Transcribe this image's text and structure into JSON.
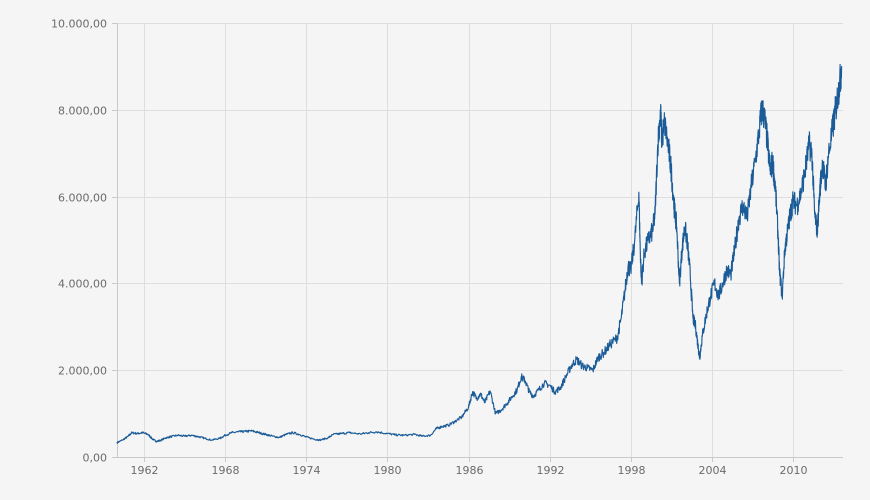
{
  "chart_data": {
    "type": "line",
    "title": "",
    "xlabel": "",
    "ylabel": "",
    "xlim": [
      1960,
      2013.7
    ],
    "ylim": [
      0,
      10000
    ],
    "grid": true,
    "legend": "none",
    "x_ticks": [
      1962,
      1968,
      1974,
      1980,
      1986,
      1992,
      1998,
      2004,
      2010
    ],
    "x_tick_labels": [
      "1962",
      "1968",
      "1974",
      "1980",
      "1986",
      "1992",
      "1998",
      "2004",
      "2010"
    ],
    "y_ticks": [
      0,
      2000,
      4000,
      6000,
      8000,
      10000
    ],
    "y_tick_labels": [
      "0,00",
      "2.000,00",
      "4.000,00",
      "6.000,00",
      "8.000,00",
      "10.000,00"
    ],
    "line_color": "#1a5b98",
    "series": [
      {
        "points": [
          [
            1960.0,
            330
          ],
          [
            1960.4,
            390
          ],
          [
            1960.8,
            470
          ],
          [
            1961.1,
            560
          ],
          [
            1961.5,
            540
          ],
          [
            1961.9,
            560
          ],
          [
            1962.3,
            520
          ],
          [
            1962.6,
            420
          ],
          [
            1962.9,
            360
          ],
          [
            1963.2,
            380
          ],
          [
            1963.6,
            440
          ],
          [
            1964.0,
            470
          ],
          [
            1964.5,
            500
          ],
          [
            1965.0,
            480
          ],
          [
            1965.5,
            500
          ],
          [
            1966.0,
            470
          ],
          [
            1966.5,
            430
          ],
          [
            1967.0,
            390
          ],
          [
            1967.6,
            430
          ],
          [
            1968.0,
            500
          ],
          [
            1968.5,
            560
          ],
          [
            1969.0,
            580
          ],
          [
            1969.5,
            590
          ],
          [
            1970.0,
            600
          ],
          [
            1970.5,
            560
          ],
          [
            1971.0,
            520
          ],
          [
            1971.5,
            480
          ],
          [
            1972.0,
            450
          ],
          [
            1972.5,
            520
          ],
          [
            1973.0,
            560
          ],
          [
            1973.5,
            520
          ],
          [
            1974.0,
            460
          ],
          [
            1974.6,
            410
          ],
          [
            1975.0,
            390
          ],
          [
            1975.6,
            440
          ],
          [
            1976.0,
            520
          ],
          [
            1976.6,
            540
          ],
          [
            1977.2,
            560
          ],
          [
            1978.0,
            530
          ],
          [
            1978.6,
            560
          ],
          [
            1979.2,
            580
          ],
          [
            1980.0,
            540
          ],
          [
            1980.6,
            510
          ],
          [
            1981.2,
            500
          ],
          [
            1982.0,
            520
          ],
          [
            1982.6,
            480
          ],
          [
            1983.2,
            500
          ],
          [
            1983.6,
            650
          ],
          [
            1984.0,
            700
          ],
          [
            1984.5,
            730
          ],
          [
            1985.0,
            820
          ],
          [
            1985.5,
            920
          ],
          [
            1986.0,
            1150
          ],
          [
            1986.3,
            1500
          ],
          [
            1986.6,
            1350
          ],
          [
            1986.9,
            1450
          ],
          [
            1987.2,
            1250
          ],
          [
            1987.6,
            1520
          ],
          [
            1988.0,
            1000
          ],
          [
            1988.4,
            1080
          ],
          [
            1988.8,
            1220
          ],
          [
            1989.2,
            1380
          ],
          [
            1989.6,
            1550
          ],
          [
            1989.9,
            1850
          ],
          [
            1990.2,
            1750
          ],
          [
            1990.5,
            1500
          ],
          [
            1990.8,
            1400
          ],
          [
            1991.2,
            1550
          ],
          [
            1991.6,
            1700
          ],
          [
            1992.0,
            1650
          ],
          [
            1992.4,
            1500
          ],
          [
            1992.8,
            1600
          ],
          [
            1993.2,
            1850
          ],
          [
            1993.6,
            2100
          ],
          [
            1994.0,
            2250
          ],
          [
            1994.4,
            2100
          ],
          [
            1994.8,
            2050
          ],
          [
            1995.2,
            2000
          ],
          [
            1995.6,
            2300
          ],
          [
            1996.0,
            2400
          ],
          [
            1996.5,
            2600
          ],
          [
            1997.0,
            2750
          ],
          [
            1997.3,
            3200
          ],
          [
            1997.6,
            3900
          ],
          [
            1997.8,
            4400
          ],
          [
            1998.0,
            4300
          ],
          [
            1998.3,
            5000
          ],
          [
            1998.6,
            6100
          ],
          [
            1998.7,
            4800
          ],
          [
            1998.8,
            4000
          ],
          [
            1999.0,
            4700
          ],
          [
            1999.3,
            5000
          ],
          [
            1999.6,
            5200
          ],
          [
            1999.8,
            5600
          ],
          [
            2000.0,
            7200
          ],
          [
            2000.2,
            8000
          ],
          [
            2000.3,
            7300
          ],
          [
            2000.5,
            7700
          ],
          [
            2000.8,
            7100
          ],
          [
            2001.0,
            6600
          ],
          [
            2001.2,
            5800
          ],
          [
            2001.4,
            5300
          ],
          [
            2001.6,
            4000
          ],
          [
            2001.8,
            4800
          ],
          [
            2002.0,
            5300
          ],
          [
            2002.2,
            4900
          ],
          [
            2002.4,
            4200
          ],
          [
            2002.6,
            3200
          ],
          [
            2002.8,
            3000
          ],
          [
            2003.0,
            2500
          ],
          [
            2003.1,
            2300
          ],
          [
            2003.3,
            2800
          ],
          [
            2003.6,
            3300
          ],
          [
            2003.9,
            3700
          ],
          [
            2004.2,
            4000
          ],
          [
            2004.5,
            3700
          ],
          [
            2004.8,
            4000
          ],
          [
            2005.1,
            4300
          ],
          [
            2005.4,
            4200
          ],
          [
            2005.7,
            4800
          ],
          [
            2006.0,
            5500
          ],
          [
            2006.3,
            5800
          ],
          [
            2006.6,
            5500
          ],
          [
            2006.9,
            6200
          ],
          [
            2007.2,
            6800
          ],
          [
            2007.5,
            7500
          ],
          [
            2007.7,
            8050
          ],
          [
            2007.9,
            7800
          ],
          [
            2008.1,
            7300
          ],
          [
            2008.3,
            6600
          ],
          [
            2008.5,
            6800
          ],
          [
            2008.7,
            6200
          ],
          [
            2008.9,
            5100
          ],
          [
            2009.0,
            4300
          ],
          [
            2009.2,
            3700
          ],
          [
            2009.4,
            4800
          ],
          [
            2009.6,
            5200
          ],
          [
            2009.8,
            5600
          ],
          [
            2010.0,
            5900
          ],
          [
            2010.3,
            5800
          ],
          [
            2010.6,
            6100
          ],
          [
            2010.9,
            6600
          ],
          [
            2011.2,
            7200
          ],
          [
            2011.4,
            7000
          ],
          [
            2011.6,
            5600
          ],
          [
            2011.8,
            5200
          ],
          [
            2012.0,
            6200
          ],
          [
            2012.2,
            6800
          ],
          [
            2012.4,
            6200
          ],
          [
            2012.6,
            6900
          ],
          [
            2012.9,
            7500
          ],
          [
            2013.1,
            7900
          ],
          [
            2013.3,
            8300
          ],
          [
            2013.5,
            8700
          ],
          [
            2013.6,
            9000
          ]
        ]
      }
    ]
  }
}
